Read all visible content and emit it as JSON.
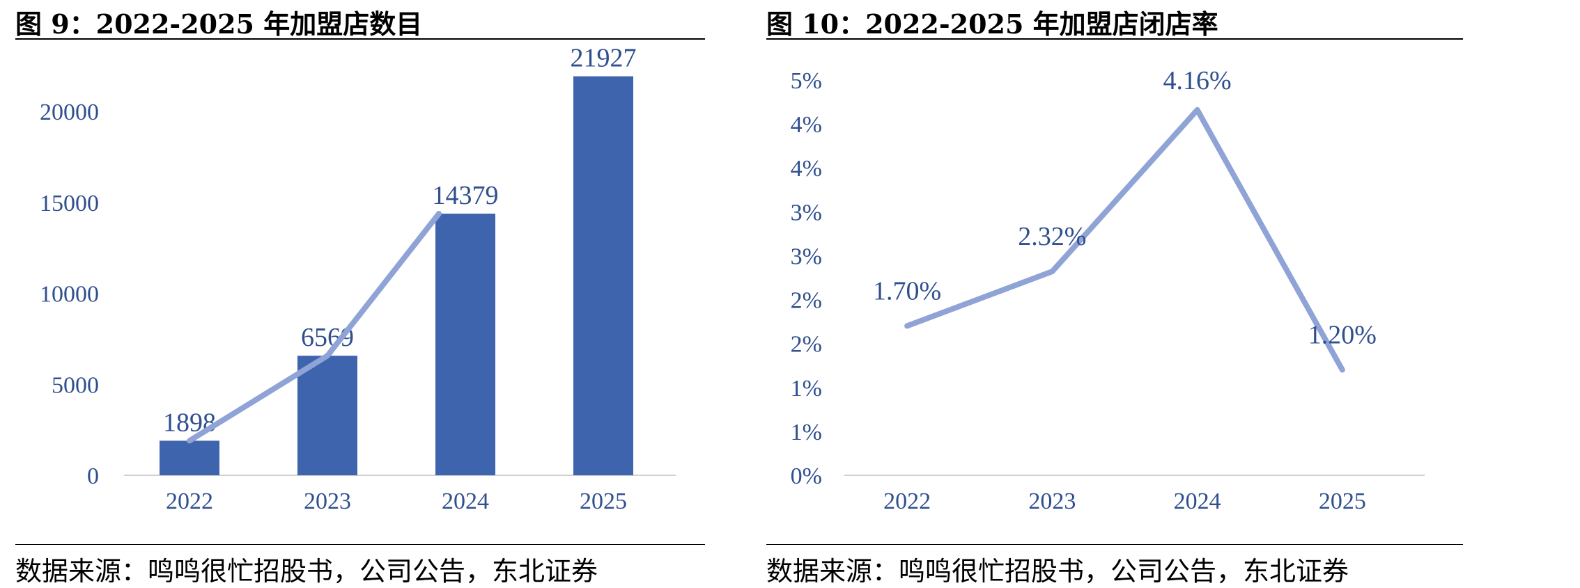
{
  "figures": [
    {
      "title": "图 9：2022-2025 年加盟店数目",
      "source": "数据来源：鸣鸣很忙招股书，公司公告，东北证券",
      "chart_data": {
        "type": "bar",
        "categories": [
          "2022",
          "2023",
          "2024",
          "2025"
        ],
        "values": [
          1898,
          6569,
          14379,
          21927
        ],
        "data_labels": [
          "1898",
          "6569",
          "14379",
          "21927"
        ],
        "line_overlay": [
          1898,
          6569,
          14379
        ],
        "yticks": [
          "0",
          "5000",
          "10000",
          "15000",
          "20000"
        ],
        "ylim": [
          0,
          22000
        ],
        "bar_color": "#3e64ad",
        "line_color": "#8fa3d6",
        "label_color": "#2f4f8f",
        "grid": false,
        "title": "图 9：2022-2025 年加盟店数目",
        "xlabel": "",
        "ylabel": ""
      }
    },
    {
      "title": "图 10：2022-2025 年加盟店闭店率",
      "source": "数据来源：鸣鸣很忙招股书，公司公告，东北证券",
      "chart_data": {
        "type": "line",
        "categories": [
          "2022",
          "2023",
          "2024",
          "2025"
        ],
        "values": [
          1.7,
          2.32,
          4.16,
          1.2
        ],
        "data_labels": [
          "1.70%",
          "2.32%",
          "4.16%",
          "1.20%"
        ],
        "yticks": [
          "0%",
          "1%",
          "1%",
          "2%",
          "2%",
          "3%",
          "3%",
          "4%",
          "4%",
          "5%"
        ],
        "ylim": [
          0,
          4.5
        ],
        "line_color": "#8fa3d6",
        "label_color": "#2f4f8f",
        "grid": false,
        "title": "图 10：2022-2025 年加盟店闭店率",
        "xlabel": "",
        "ylabel": ""
      }
    }
  ]
}
